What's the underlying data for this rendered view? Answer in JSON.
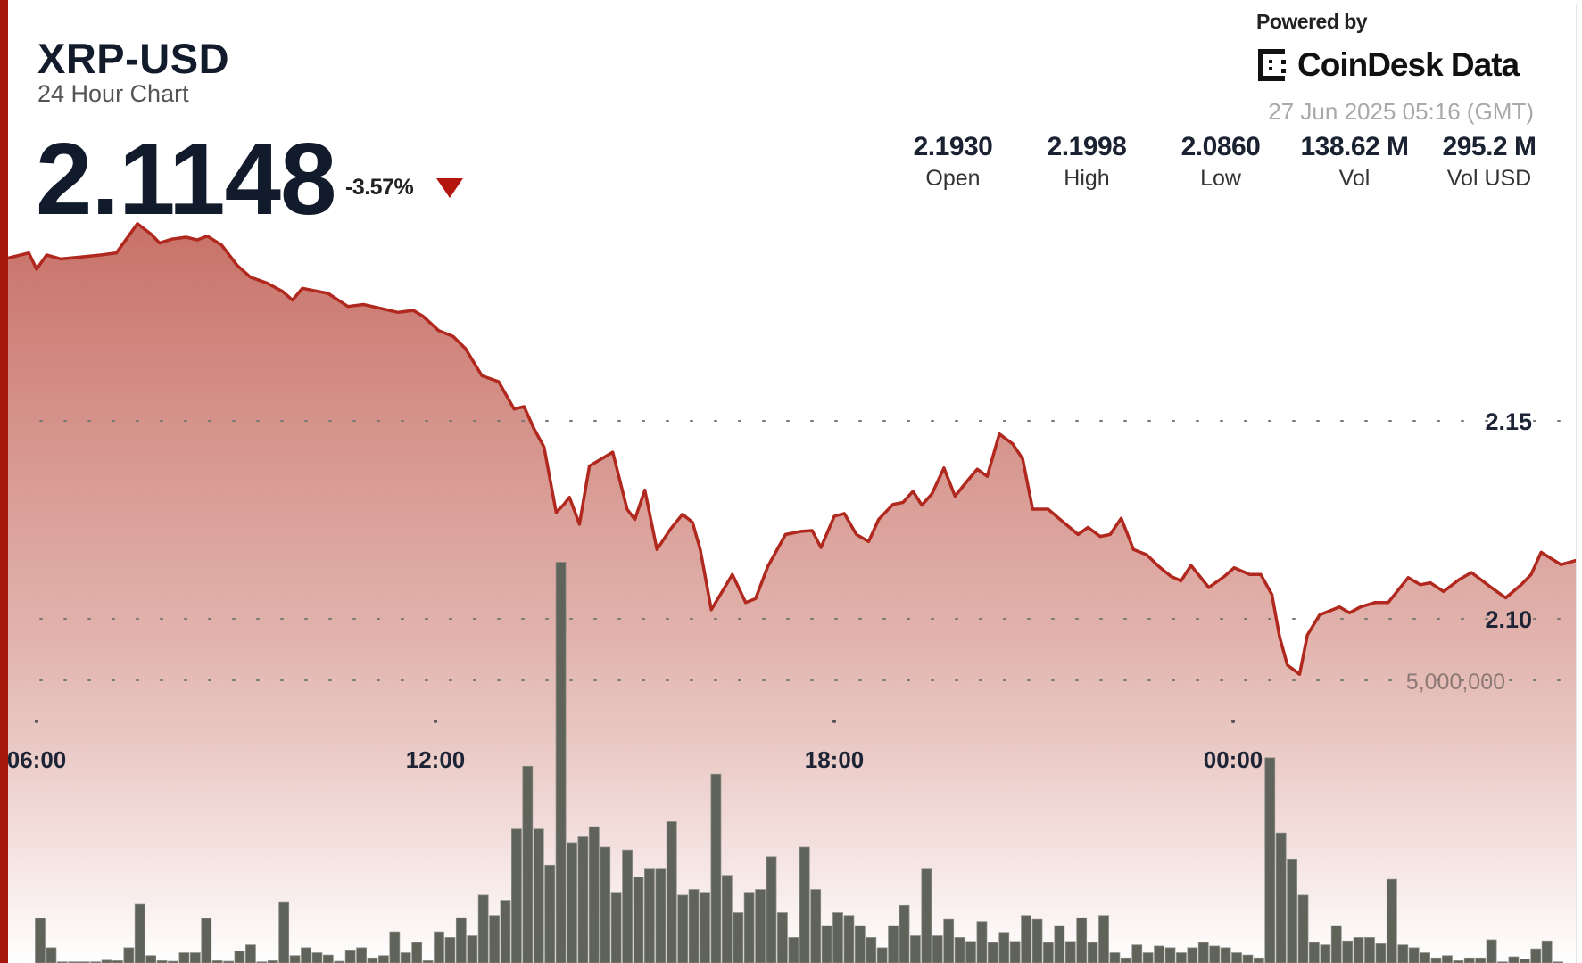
{
  "header": {
    "symbol": "XRP-USD",
    "subtitle": "24 Hour Chart",
    "price": "2.1148",
    "change": "-3.57%",
    "direction_icon": "triangle-down-icon",
    "powered_by": "Powered by",
    "brand": "CoinDesk Data",
    "timestamp": "27 Jun 2025 05:16 (GMT)"
  },
  "stats": [
    {
      "value": "2.1930",
      "label": "Open"
    },
    {
      "value": "2.1998",
      "label": "High"
    },
    {
      "value": "2.0860",
      "label": "Low"
    },
    {
      "value": "138.62 M",
      "label": "Vol"
    },
    {
      "value": "295.2 M",
      "label": "Vol USD"
    }
  ],
  "colors": {
    "line": "#b0281e",
    "fill_top": "#c56a60",
    "accent_bar": "#a5170d",
    "volume_bar": "#5f6359",
    "down": "#b3160d"
  },
  "chart_data": {
    "type": "area",
    "grid": "dotted horizontal",
    "x_ticks": [
      "06:00",
      "12:00",
      "18:00",
      "00:00"
    ],
    "y_ticks": [
      {
        "value": 2.15,
        "label": "2.15"
      },
      {
        "value": 2.1,
        "label": "2.10"
      }
    ],
    "volume_tick": {
      "value": 5000000,
      "label": "5,000,000"
    },
    "price": {
      "times": [
        "05:36",
        "05:53",
        "06:00",
        "06:09",
        "06:22",
        "06:40",
        "06:58",
        "07:12",
        "07:21",
        "07:31",
        "07:44",
        "07:51",
        "08:02",
        "08:15",
        "08:25",
        "08:34",
        "08:47",
        "09:01",
        "09:13",
        "09:28",
        "09:42",
        "09:51",
        "10:00",
        "10:14",
        "10:23",
        "10:41",
        "10:55",
        "11:11",
        "11:26",
        "11:40",
        "11:49",
        "12:03",
        "12:16",
        "12:27",
        "12:42",
        "12:57",
        "13:11",
        "13:20",
        "13:29",
        "13:38",
        "13:49",
        "13:56",
        "14:01",
        "14:10",
        "14:19",
        "14:28",
        "14:40",
        "14:53",
        "15:00",
        "15:09",
        "15:20",
        "15:32",
        "15:43",
        "15:52",
        "15:59",
        "16:09",
        "16:20",
        "16:28",
        "16:40",
        "16:49",
        "17:00",
        "17:16",
        "17:30",
        "17:40",
        "17:48",
        "18:00",
        "18:09",
        "18:20",
        "18:31",
        "18:40",
        "18:53",
        "19:02",
        "19:11",
        "19:19",
        "19:28",
        "19:39",
        "19:49",
        "20:00",
        "20:09",
        "20:18",
        "20:29",
        "20:41",
        "20:50",
        "20:59",
        "21:13",
        "21:26",
        "21:40",
        "21:49",
        "22:00",
        "22:09",
        "22:19",
        "22:30",
        "22:42",
        "22:53",
        "23:04",
        "23:13",
        "23:22",
        "23:38",
        "23:52",
        "00:01",
        "00:15",
        "00:25",
        "00:35",
        "00:42",
        "00:49",
        "01:00",
        "01:07",
        "01:18",
        "01:36",
        "01:45",
        "01:55",
        "02:08",
        "02:20",
        "02:38",
        "02:49",
        "02:58",
        "03:10",
        "03:24",
        "03:35",
        "03:53",
        "04:06",
        "04:20",
        "04:29",
        "04:38",
        "04:56",
        "05:08"
      ],
      "values": [
        2.1911,
        2.1924,
        2.1883,
        2.1919,
        2.1909,
        2.1914,
        2.1919,
        2.1924,
        2.1959,
        2.1998,
        2.197,
        2.1949,
        2.1959,
        2.1964,
        2.1957,
        2.1967,
        2.1944,
        2.1893,
        2.1863,
        2.1848,
        2.1827,
        2.1805,
        2.1835,
        2.1827,
        2.1822,
        2.1789,
        2.1794,
        2.1784,
        2.1774,
        2.1779,
        2.1764,
        2.1728,
        2.1713,
        2.1683,
        2.1614,
        2.1599,
        2.153,
        2.1536,
        2.148,
        2.1434,
        2.1269,
        2.1289,
        2.1307,
        2.1239,
        2.1386,
        2.1401,
        2.1421,
        2.1277,
        2.1251,
        2.1325,
        2.1175,
        2.1226,
        2.1264,
        2.1244,
        2.1175,
        2.1023,
        2.1074,
        2.1112,
        2.1041,
        2.1051,
        2.1132,
        2.1213,
        2.1221,
        2.1223,
        2.118,
        2.1259,
        2.1266,
        2.1213,
        2.1195,
        2.1251,
        2.1289,
        2.1294,
        2.1322,
        2.1287,
        2.1315,
        2.1381,
        2.131,
        2.1348,
        2.1378,
        2.136,
        2.1467,
        2.1442,
        2.1404,
        2.1277,
        2.1277,
        2.1246,
        2.1213,
        2.1231,
        2.1208,
        2.1213,
        2.1254,
        2.1175,
        2.1162,
        2.1132,
        2.1107,
        2.1096,
        2.1135,
        2.1079,
        2.1107,
        2.1129,
        2.1112,
        2.1112,
        2.1061,
        2.0954,
        2.0883,
        2.086,
        2.0959,
        2.101,
        2.103,
        2.1015,
        2.103,
        2.1041,
        2.1041,
        2.1104,
        2.1086,
        2.1091,
        2.1069,
        2.1099,
        2.1117,
        2.1079,
        2.1053,
        2.1086,
        2.1112,
        2.1168,
        2.1137,
        2.1148
      ]
    },
    "volume": {
      "start": "06:00",
      "interval_minutes": 10,
      "values": [
        790000,
        270000,
        20000,
        20000,
        20000,
        20000,
        50000,
        40000,
        270000,
        1040000,
        130000,
        40000,
        30000,
        180000,
        180000,
        790000,
        40000,
        30000,
        210000,
        320000,
        20000,
        40000,
        1070000,
        130000,
        270000,
        180000,
        140000,
        30000,
        230000,
        270000,
        90000,
        130000,
        550000,
        180000,
        360000,
        40000,
        550000,
        450000,
        800000,
        480000,
        1200000,
        840000,
        1110000,
        2370000,
        3480000,
        2370000,
        1730000,
        7090000,
        2130000,
        2230000,
        2410000,
        2050000,
        1250000,
        2000000,
        1520000,
        1660000,
        1660000,
        2500000,
        1200000,
        1300000,
        1250000,
        3340000,
        1550000,
        890000,
        1250000,
        1300000,
        1880000,
        890000,
        450000,
        2050000,
        1300000,
        660000,
        890000,
        840000,
        660000,
        450000,
        270000,
        660000,
        1020000,
        480000,
        1660000,
        480000,
        770000,
        450000,
        380000,
        730000,
        360000,
        540000,
        380000,
        840000,
        770000,
        360000,
        660000,
        380000,
        800000,
        360000,
        840000,
        180000,
        90000,
        320000,
        180000,
        300000,
        270000,
        180000,
        270000,
        360000,
        300000,
        270000,
        180000,
        140000,
        90000,
        3630000,
        2300000,
        1840000,
        1200000,
        360000,
        320000,
        660000,
        390000,
        450000,
        450000,
        340000,
        1480000,
        320000,
        270000,
        180000,
        90000,
        130000,
        40000,
        90000,
        90000,
        410000,
        20000,
        110000,
        70000,
        250000,
        390000,
        20000
      ]
    }
  }
}
